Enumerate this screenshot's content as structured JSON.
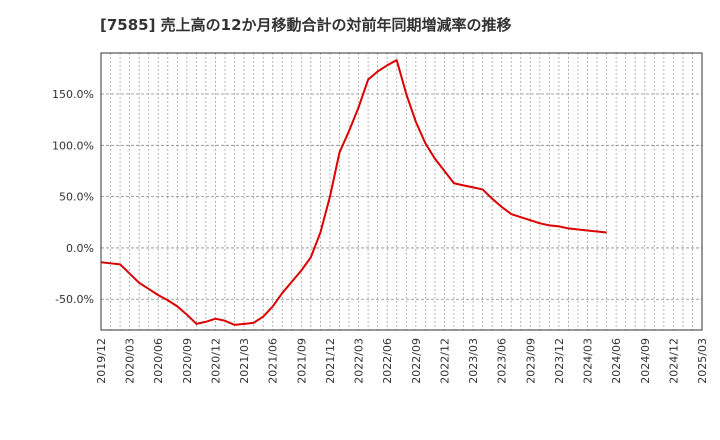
{
  "chart_data": {
    "type": "line",
    "title": "[7585]  売上高の12か月移動合計の対前年同期増減率の推移",
    "xlabel": "",
    "ylabel": "",
    "ylim": [
      -80,
      190
    ],
    "y_ticks": [
      -50,
      0,
      50,
      100,
      150
    ],
    "y_tick_labels": [
      "-50.0%",
      "0.0%",
      "50.0%",
      "100.0%",
      "150.0%"
    ],
    "x_tick_labels": [
      "2019/12",
      "2020/03",
      "2020/06",
      "2020/09",
      "2020/12",
      "2021/03",
      "2021/06",
      "2021/09",
      "2021/12",
      "2022/03",
      "2022/06",
      "2022/09",
      "2022/12",
      "2023/03",
      "2023/06",
      "2023/09",
      "2023/12",
      "2024/03",
      "2024/06",
      "2024/09",
      "2024/12",
      "2025/03"
    ],
    "grid": true,
    "line_color": "#dd0000",
    "series": [
      {
        "name": "対前年同期増減率",
        "x": [
          0,
          1,
          2,
          3,
          4,
          5,
          6,
          7,
          8,
          9,
          10,
          11,
          12,
          13,
          14,
          15,
          16,
          17,
          18,
          19,
          20,
          21,
          22,
          23,
          24,
          25,
          26,
          27,
          28,
          29,
          30,
          31,
          32,
          33,
          34,
          35,
          36,
          37,
          38,
          39,
          40,
          41,
          42,
          43,
          44,
          45,
          46,
          47,
          48,
          49,
          50,
          51,
          52,
          53,
          54,
          55,
          56,
          57,
          58,
          59,
          60
        ],
        "values": [
          -14,
          -15,
          -16,
          -25,
          -34,
          -40,
          -46,
          -51,
          -57,
          -65,
          -74,
          -72,
          -69,
          -71,
          -75,
          -74,
          -73,
          -67,
          -57,
          -44,
          -33,
          -22,
          -9,
          15,
          50,
          93,
          114,
          137,
          164,
          172,
          178,
          183,
          150,
          123,
          102,
          87,
          75,
          63,
          61,
          59,
          57,
          48,
          40,
          33,
          30,
          27,
          24,
          22,
          21,
          19,
          18,
          17,
          16,
          15,
          null,
          null,
          null,
          null,
          null,
          null,
          null
        ]
      }
    ]
  }
}
